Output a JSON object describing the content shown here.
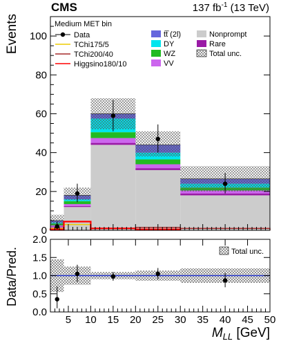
{
  "chart_data": {
    "type": "bar",
    "stacked": true,
    "experiment": "CMS",
    "lumi_label": "137 fb",
    "lumi_exp": "-1",
    "lumi_suffix": "(13 TeV)",
    "category_label": "Medium MET bin",
    "xlabel_main": "M",
    "xlabel_sub": "LL",
    "xlabel_unit": "[GeV]",
    "ylabel": "Events",
    "ratio_ylabel": "Data/Pred.",
    "ylim": [
      0,
      110
    ],
    "ratio_ylim": [
      0,
      2
    ],
    "xlim": [
      1,
      50
    ],
    "x_bins": [
      [
        1,
        4
      ],
      [
        4,
        10
      ],
      [
        10,
        20
      ],
      [
        20,
        30
      ],
      [
        30,
        50
      ]
    ],
    "x_ticks": [
      5,
      10,
      15,
      20,
      25,
      30,
      35,
      40,
      45,
      50
    ],
    "y_ticks": [
      0,
      20,
      40,
      60,
      80,
      100
    ],
    "ratio_ticks": [
      "0.0",
      "0.5",
      "1.0",
      "1.5",
      "2.0"
    ],
    "ratio_tick_values": [
      0,
      0.5,
      1,
      1.5,
      2
    ],
    "series": [
      {
        "key": "nonprompt",
        "name": "Nonprompt",
        "color": "#cccccc",
        "values": [
          1.5,
          12.0,
          44.0,
          31.0,
          18.0
        ]
      },
      {
        "key": "rare",
        "name": "Rare",
        "color": "#9a1aa6",
        "values": [
          0.5,
          0.5,
          1.0,
          1.0,
          1.0
        ]
      },
      {
        "key": "vv",
        "name": "VV",
        "color": "#cc66ee",
        "values": [
          0.5,
          1.0,
          2.5,
          2.0,
          1.5
        ]
      },
      {
        "key": "wz",
        "name": "WZ",
        "color": "#22bb22",
        "values": [
          1.0,
          1.5,
          3.0,
          2.5,
          1.5
        ]
      },
      {
        "key": "dy",
        "name": "DY",
        "color": "#00e5ee",
        "values": [
          0.5,
          1.0,
          7.0,
          3.5,
          2.0
        ]
      },
      {
        "key": "tt",
        "name": "tt̅ (2l)",
        "color": "#6666dd",
        "values": [
          1.0,
          2.0,
          2.5,
          4.0,
          2.5
        ]
      }
    ],
    "total_unc": {
      "name": "Total unc.",
      "up": [
        8.0,
        22.0,
        68.0,
        51.0,
        33.0
      ],
      "down": [
        2.5,
        15.5,
        52.0,
        38.0,
        20.0
      ]
    },
    "data": {
      "name": "Data",
      "x": [
        2.5,
        7,
        15,
        25,
        40
      ],
      "y": [
        2,
        19,
        59,
        47,
        24
      ],
      "err_up": [
        2.5,
        5.0,
        8.0,
        7.5,
        5.5
      ],
      "err_down": [
        1.5,
        4.5,
        8.0,
        7.0,
        5.0
      ]
    },
    "signals": [
      {
        "name": "TChi175/5",
        "color": "#eecc00",
        "values": [
          1.0,
          3.0,
          0,
          0,
          0
        ]
      },
      {
        "name": "TChi200/40",
        "color": "#a52a2a",
        "values": [
          0,
          0,
          1.0,
          1.5,
          1.0
        ]
      },
      {
        "name": "Higgsino180/10",
        "color": "#ff0000",
        "values": [
          0.5,
          4.5,
          1.0,
          0.5,
          0
        ]
      }
    ],
    "ratio": {
      "x": [
        2.5,
        7,
        15,
        25,
        40
      ],
      "y": [
        0.35,
        1.05,
        0.98,
        1.05,
        0.87
      ],
      "err_up": [
        0.35,
        0.25,
        0.12,
        0.16,
        0.2
      ],
      "err_down": [
        0.25,
        0.22,
        0.12,
        0.15,
        0.19
      ],
      "unc_up": [
        1.45,
        1.25,
        1.1,
        1.14,
        1.2
      ],
      "unc_down": [
        0.55,
        0.75,
        0.9,
        0.86,
        0.8
      ]
    },
    "legend_placement": "top"
  }
}
